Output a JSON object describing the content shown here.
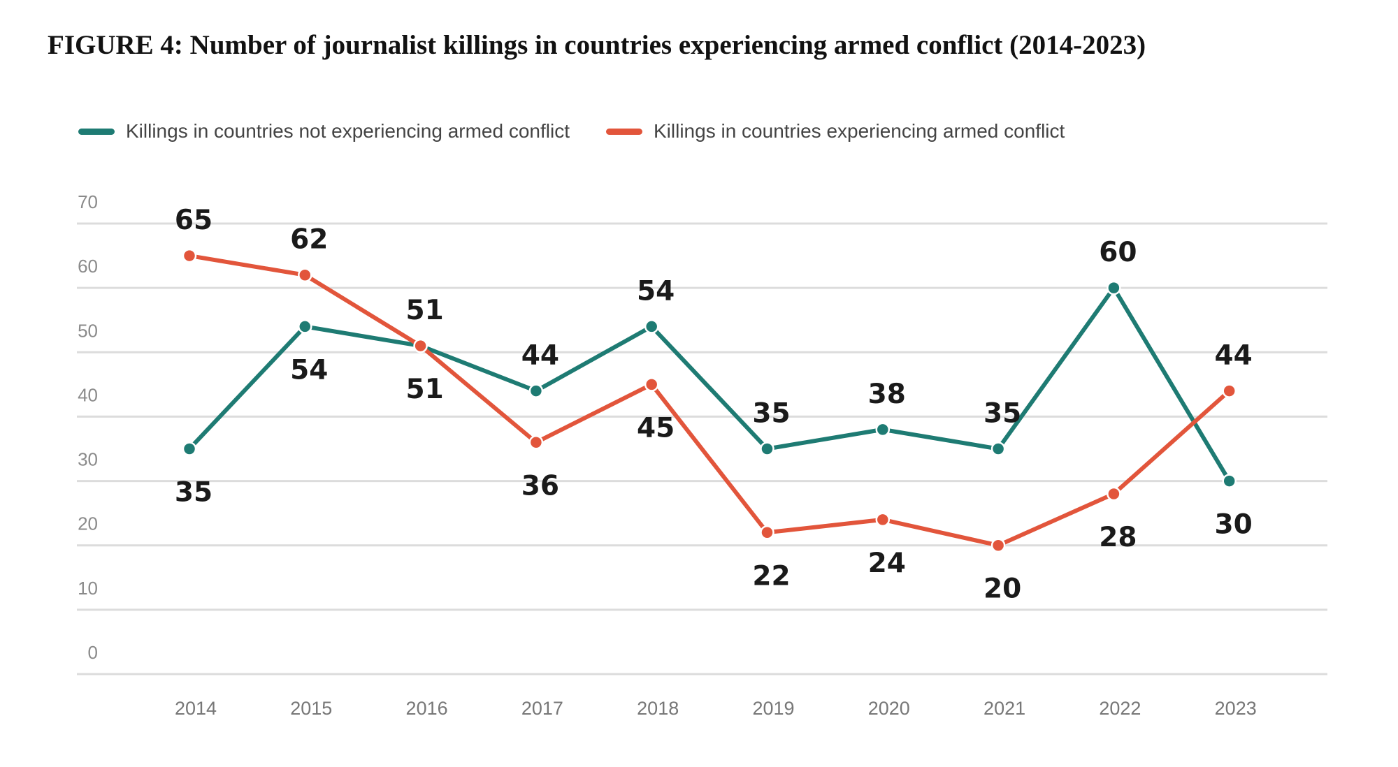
{
  "chart_data": {
    "type": "line",
    "title": "FIGURE 4: Number of journalist killings in countries experiencing armed conflict (2014-2023)",
    "xlabel": "",
    "ylabel": "",
    "categories": [
      "2014",
      "2015",
      "2016",
      "2017",
      "2018",
      "2019",
      "2020",
      "2021",
      "2022",
      "2023"
    ],
    "ylim": [
      0,
      70
    ],
    "yticks": [
      0,
      10,
      20,
      30,
      40,
      50,
      60,
      70
    ],
    "grid": true,
    "legend_position": "top-left",
    "series": [
      {
        "name": "Killings in countries not experiencing armed conflict",
        "color": "#1e7b73",
        "values": [
          35,
          54,
          51,
          44,
          54,
          35,
          38,
          35,
          60,
          30
        ],
        "label_side": [
          "below",
          "below",
          "above",
          "above",
          "above",
          "above",
          "above",
          "above",
          "above",
          "below"
        ]
      },
      {
        "name": "Killings in countries experiencing armed conflict",
        "color": "#e2553b",
        "values": [
          65,
          62,
          51,
          36,
          45,
          22,
          24,
          20,
          28,
          44
        ],
        "label_side": [
          "above",
          "above",
          "below",
          "below",
          "below",
          "below",
          "below",
          "below",
          "below",
          "above"
        ]
      }
    ]
  }
}
